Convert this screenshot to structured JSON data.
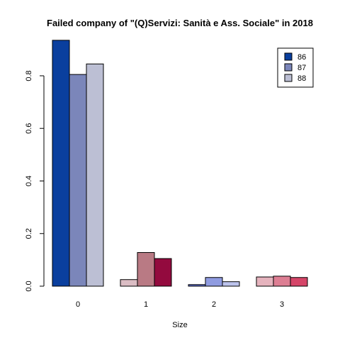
{
  "chart_data": {
    "type": "bar",
    "title": "Failed company of  \"(Q)Servizi: Sanità e Ass. Sociale\" in 2018",
    "xlabel": "Size",
    "ylabel": "",
    "categories": [
      "0",
      "1",
      "2",
      "3"
    ],
    "ylim": [
      0,
      0.94
    ],
    "yticks": [
      "0.0",
      "0.2",
      "0.4",
      "0.6",
      "0.8"
    ],
    "legend_position": "top-right",
    "grid": false,
    "series": [
      {
        "name": "86",
        "values": [
          0.935,
          0.025,
          0.006,
          0.035
        ]
      },
      {
        "name": "87",
        "values": [
          0.805,
          0.128,
          0.033,
          0.038
        ]
      },
      {
        "name": "88",
        "values": [
          0.845,
          0.105,
          0.017,
          0.033
        ]
      }
    ],
    "bar_colors": [
      [
        "#0a3f9e",
        "#7b86ba",
        "#bcbfd4"
      ],
      [
        "#dbbdc4",
        "#b97a84",
        "#930a3e"
      ],
      [
        "#5d6fcf",
        "#8f9be0",
        "#bcc3ec"
      ],
      [
        "#e5b3bd",
        "#dd7e93",
        "#d54568"
      ]
    ],
    "legend_colors": [
      "#0a3f9e",
      "#7b86ba",
      "#bcbfd4"
    ]
  }
}
